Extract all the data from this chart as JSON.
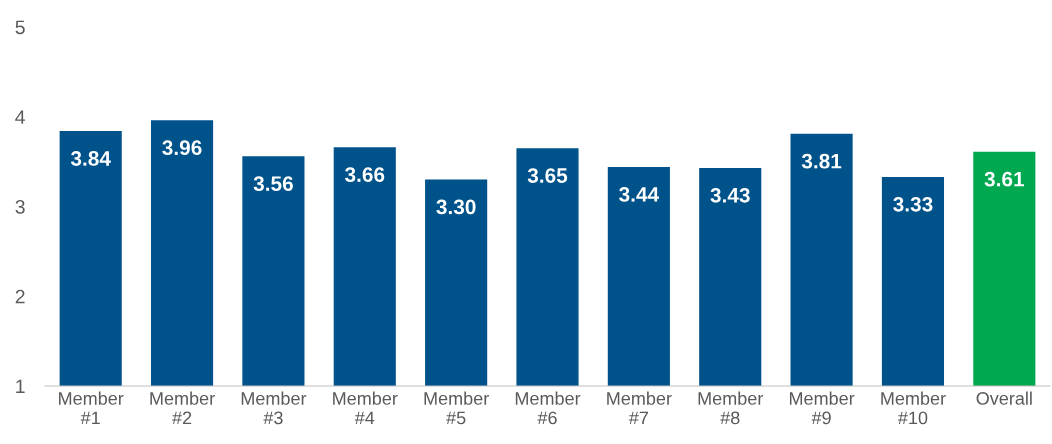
{
  "chart_data": {
    "type": "bar",
    "categories": [
      "Member\n#1",
      "Member\n#2",
      "Member\n#3",
      "Member\n#4",
      "Member\n#5",
      "Member\n#6",
      "Member\n#7",
      "Member\n#8",
      "Member\n#9",
      "Member\n#10",
      "Overall"
    ],
    "values": [
      3.84,
      3.96,
      3.56,
      3.66,
      3.3,
      3.65,
      3.44,
      3.43,
      3.81,
      3.33,
      3.61
    ],
    "colors": [
      "#00538a",
      "#00538a",
      "#00538a",
      "#00538a",
      "#00538a",
      "#00538a",
      "#00538a",
      "#00538a",
      "#00538a",
      "#00538a",
      "#00a84f"
    ],
    "value_labels": [
      "3.84",
      "3.96",
      "3.56",
      "3.66",
      "3.30",
      "3.65",
      "3.44",
      "3.43",
      "3.81",
      "3.33",
      "3.61"
    ],
    "ylim": [
      1,
      5
    ],
    "yticks": [
      1,
      2,
      3,
      4,
      5
    ],
    "grid": false
  }
}
